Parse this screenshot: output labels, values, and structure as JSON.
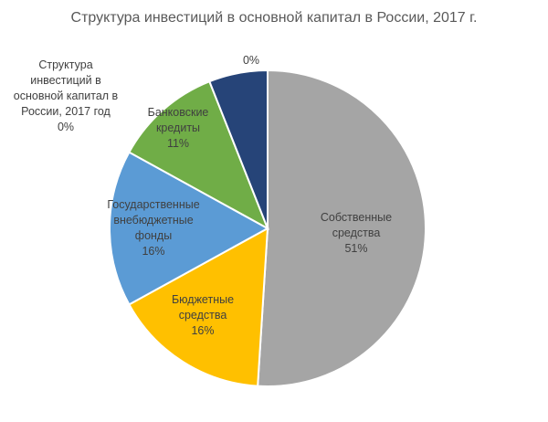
{
  "chart_data": {
    "type": "pie",
    "title": "Структура инвестиций в основной капитал в России, 2017 г.",
    "categories": [
      "Собственные средства",
      "Бюджетные средства",
      "Государственные внебюджетные фонды",
      "Банковские кредиты",
      null,
      null,
      "Структура инвестиций в основной капитал в России, 2017 год"
    ],
    "values": [
      51,
      16,
      16,
      11,
      6,
      0,
      0
    ],
    "value_labels": [
      "51%",
      "16%",
      "16%",
      "11%",
      null,
      "0%",
      "0%"
    ],
    "colors": [
      "#a5a5a5",
      "#ffc000",
      "#5b9bd5",
      "#70ad47",
      "#264478",
      "#9e480e",
      "#636363"
    ]
  }
}
